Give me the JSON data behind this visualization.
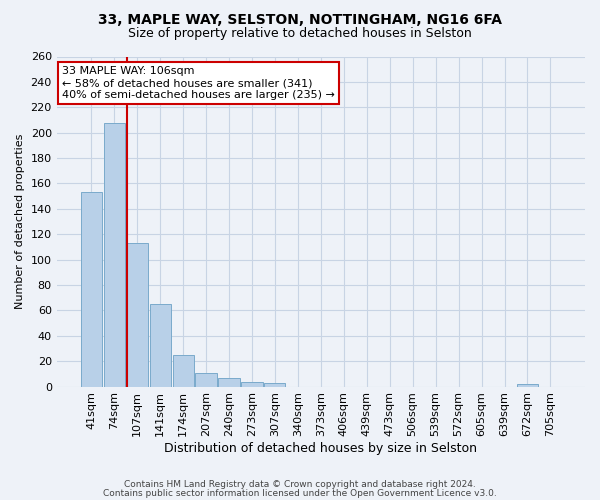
{
  "title1": "33, MAPLE WAY, SELSTON, NOTTINGHAM, NG16 6FA",
  "title2": "Size of property relative to detached houses in Selston",
  "xlabel": "Distribution of detached houses by size in Selston",
  "ylabel": "Number of detached properties",
  "bar_color": "#b8d0e8",
  "bar_edge_color": "#7aaacb",
  "grid_color": "#c8d4e4",
  "categories": [
    "41sqm",
    "74sqm",
    "107sqm",
    "141sqm",
    "174sqm",
    "207sqm",
    "240sqm",
    "273sqm",
    "307sqm",
    "340sqm",
    "373sqm",
    "406sqm",
    "439sqm",
    "473sqm",
    "506sqm",
    "539sqm",
    "572sqm",
    "605sqm",
    "639sqm",
    "672sqm",
    "705sqm"
  ],
  "values": [
    153,
    208,
    113,
    65,
    25,
    11,
    7,
    4,
    3,
    0,
    0,
    0,
    0,
    0,
    0,
    0,
    0,
    0,
    0,
    2,
    0
  ],
  "red_line_x": 2,
  "red_line_color": "#cc0000",
  "annotation_line1": "33 MAPLE WAY: 106sqm",
  "annotation_line2": "← 58% of detached houses are smaller (341)",
  "annotation_line3": "40% of semi-detached houses are larger (235) →",
  "annotation_box_color": "white",
  "annotation_border_color": "#cc0000",
  "ylim": [
    0,
    260
  ],
  "yticks": [
    0,
    20,
    40,
    60,
    80,
    100,
    120,
    140,
    160,
    180,
    200,
    220,
    240,
    260
  ],
  "footer1": "Contains HM Land Registry data © Crown copyright and database right 2024.",
  "footer2": "Contains public sector information licensed under the Open Government Licence v3.0.",
  "bg_color": "#eef2f8",
  "title1_fontsize": 10,
  "title2_fontsize": 9,
  "xlabel_fontsize": 9,
  "ylabel_fontsize": 8,
  "tick_fontsize": 8,
  "annotation_fontsize": 8,
  "footer_fontsize": 6.5
}
